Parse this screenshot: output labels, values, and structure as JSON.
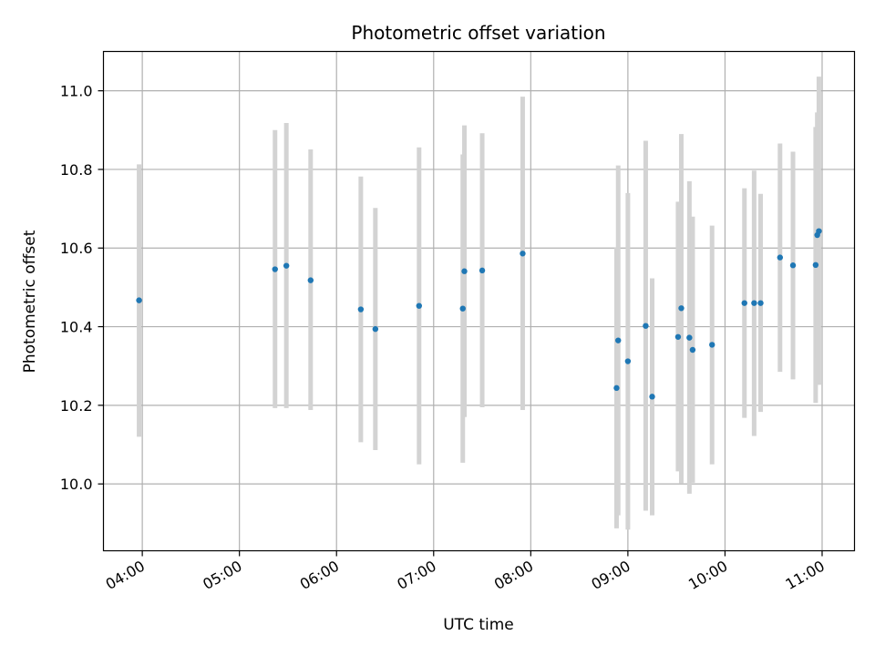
{
  "chart_data": {
    "type": "scatter",
    "title": "Photometric offset variation",
    "xlabel": "UTC time",
    "ylabel": "Photometric offset",
    "x_axis_type": "time",
    "xlim": [
      "03:36",
      "11:20"
    ],
    "ylim": [
      9.83,
      11.1
    ],
    "x_ticks": [
      "04:00",
      "05:00",
      "06:00",
      "07:00",
      "08:00",
      "09:00",
      "10:00",
      "11:00"
    ],
    "y_ticks": [
      10.0,
      10.2,
      10.4,
      10.6,
      10.8,
      11.0
    ],
    "y_tick_labels": [
      "10.0",
      "10.2",
      "10.4",
      "10.6",
      "10.8",
      "11.0"
    ],
    "grid": true,
    "point_color": "#1f77b4",
    "errorbar_color": "#d3d3d3",
    "points": [
      {
        "x": "03:58",
        "y": 10.467,
        "ylow": 10.12,
        "yhigh": 10.813
      },
      {
        "x": "05:22",
        "y": 10.546,
        "ylow": 10.193,
        "yhigh": 10.9
      },
      {
        "x": "05:29",
        "y": 10.555,
        "ylow": 10.193,
        "yhigh": 10.918
      },
      {
        "x": "05:44",
        "y": 10.518,
        "ylow": 10.188,
        "yhigh": 10.851
      },
      {
        "x": "06:15",
        "y": 10.444,
        "ylow": 10.106,
        "yhigh": 10.782
      },
      {
        "x": "06:24",
        "y": 10.394,
        "ylow": 10.086,
        "yhigh": 10.702
      },
      {
        "x": "06:51",
        "y": 10.453,
        "ylow": 10.05,
        "yhigh": 10.856
      },
      {
        "x": "07:18",
        "y": 10.446,
        "ylow": 10.054,
        "yhigh": 10.838
      },
      {
        "x": "07:19",
        "y": 10.541,
        "ylow": 10.17,
        "yhigh": 10.912
      },
      {
        "x": "07:30",
        "y": 10.543,
        "ylow": 10.195,
        "yhigh": 10.892
      },
      {
        "x": "07:55",
        "y": 10.586,
        "ylow": 10.188,
        "yhigh": 10.985
      },
      {
        "x": "08:53",
        "y": 10.244,
        "ylow": 9.887,
        "yhigh": 10.601
      },
      {
        "x": "08:54",
        "y": 10.365,
        "ylow": 9.92,
        "yhigh": 10.81
      },
      {
        "x": "09:00",
        "y": 10.312,
        "ylow": 9.884,
        "yhigh": 10.74
      },
      {
        "x": "09:11",
        "y": 10.402,
        "ylow": 9.932,
        "yhigh": 10.873
      },
      {
        "x": "09:15",
        "y": 10.222,
        "ylow": 9.92,
        "yhigh": 10.523
      },
      {
        "x": "09:31",
        "y": 10.374,
        "ylow": 10.032,
        "yhigh": 10.718
      },
      {
        "x": "09:33",
        "y": 10.447,
        "ylow": 10.002,
        "yhigh": 10.89
      },
      {
        "x": "09:38",
        "y": 10.372,
        "ylow": 9.975,
        "yhigh": 10.77
      },
      {
        "x": "09:40",
        "y": 10.341,
        "ylow": 10.003,
        "yhigh": 10.68
      },
      {
        "x": "09:52",
        "y": 10.354,
        "ylow": 10.05,
        "yhigh": 10.657
      },
      {
        "x": "10:12",
        "y": 10.46,
        "ylow": 10.168,
        "yhigh": 10.752
      },
      {
        "x": "10:18",
        "y": 10.46,
        "ylow": 10.122,
        "yhigh": 10.797
      },
      {
        "x": "10:22",
        "y": 10.46,
        "ylow": 10.183,
        "yhigh": 10.738
      },
      {
        "x": "10:34",
        "y": 10.576,
        "ylow": 10.285,
        "yhigh": 10.866
      },
      {
        "x": "10:42",
        "y": 10.556,
        "ylow": 10.266,
        "yhigh": 10.845
      },
      {
        "x": "10:56",
        "y": 10.557,
        "ylow": 10.206,
        "yhigh": 10.908
      },
      {
        "x": "10:57",
        "y": 10.633,
        "ylow": 10.32,
        "yhigh": 10.945
      },
      {
        "x": "10:58",
        "y": 10.643,
        "ylow": 10.252,
        "yhigh": 11.036
      }
    ]
  }
}
